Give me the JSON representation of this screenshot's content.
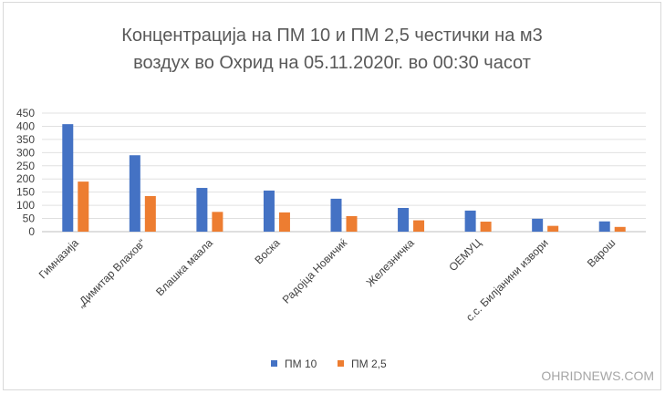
{
  "chart_data": {
    "type": "bar",
    "title_lines": [
      "Концентрација на ПМ 10 и ПМ 2,5 честички на м3",
      "воздух во Охрид на 05.11.2020г. во 00:30 часот"
    ],
    "xlabel": "",
    "ylabel": "",
    "ylim": [
      0,
      450
    ],
    "yticks": [
      0,
      50,
      100,
      150,
      200,
      250,
      300,
      350,
      400,
      450
    ],
    "grid": true,
    "legend_position": "bottom",
    "categories": [
      "Гимназија",
      "„Димитар Влахов“",
      "Влашка маала",
      "Воска",
      "Радојца Новичиќ",
      "Железничка",
      "ОЕМУЦ",
      "с.с. Билјанини извори",
      "Варош"
    ],
    "series": [
      {
        "name": "ПМ 10",
        "color": "#4472c4",
        "values": [
          408,
          290,
          166,
          156,
          125,
          90,
          80,
          49,
          39
        ]
      },
      {
        "name": "ПМ 2,5",
        "color": "#ed7d31",
        "values": [
          190,
          135,
          75,
          73,
          59,
          43,
          38,
          22,
          18
        ]
      }
    ]
  },
  "watermark": "OHRIDNEWS.COM"
}
